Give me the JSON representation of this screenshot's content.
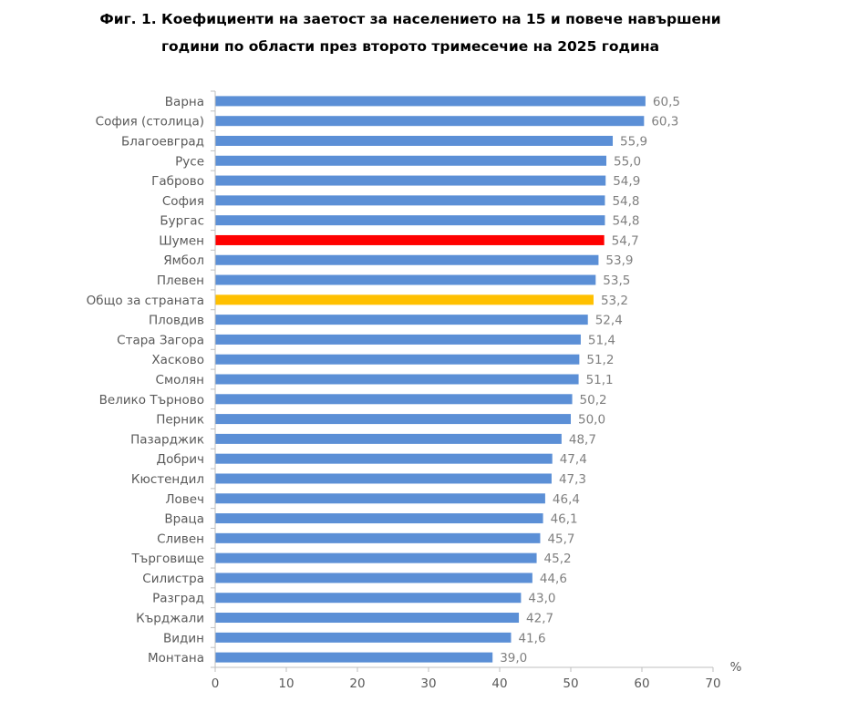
{
  "chart_data": {
    "type": "bar",
    "orientation": "horizontal",
    "title_lines": [
      "Фиг. 1. Коефициенти  на заетост за населението  на 15 и повече навършени",
      "години по области през второто тримесечие  на 2025 година"
    ],
    "categories": [
      "Варна",
      "София (столица)",
      "Благоевград",
      "Русе",
      "Габрово",
      "София",
      "Бургас",
      "Шумен",
      "Ямбол",
      "Плевен",
      "Общо за страната",
      "Пловдив",
      "Стара Загора",
      "Хасково",
      "Смолян",
      "Велико Търново",
      "Перник",
      "Пазарджик",
      "Добрич",
      "Кюстендил",
      "Ловеч",
      "Враца",
      "Сливен",
      "Търговище",
      "Силистра",
      "Разград",
      "Кърджали",
      "Видин",
      "Монтана"
    ],
    "values": [
      60.5,
      60.3,
      55.9,
      55.0,
      54.9,
      54.8,
      54.8,
      54.7,
      53.9,
      53.5,
      53.2,
      52.4,
      51.4,
      51.2,
      51.1,
      50.2,
      50.0,
      48.7,
      47.4,
      47.3,
      46.4,
      46.1,
      45.7,
      45.2,
      44.6,
      43.0,
      42.7,
      41.6,
      39.0
    ],
    "value_labels": [
      "60,5",
      "60,3",
      "55,9",
      "55,0",
      "54,9",
      "54,8",
      "54,8",
      "54,7",
      "53,9",
      "53,5",
      "53,2",
      "52,4",
      "51,4",
      "51,2",
      "51,1",
      "50,2",
      "50,0",
      "48,7",
      "47,4",
      "47,3",
      "46,4",
      "46,1",
      "45,7",
      "45,2",
      "44,6",
      "43,0",
      "42,7",
      "41,6",
      "39,0"
    ],
    "highlight": {
      "Шумен": "#ff0000",
      "Общо за страната": "#ffc000"
    },
    "bar_color": "#5b8fd6",
    "xlim": [
      0,
      70
    ],
    "xticks": [
      0,
      10,
      20,
      30,
      40,
      50,
      60,
      70
    ],
    "xlabel": "%",
    "grid": false
  }
}
